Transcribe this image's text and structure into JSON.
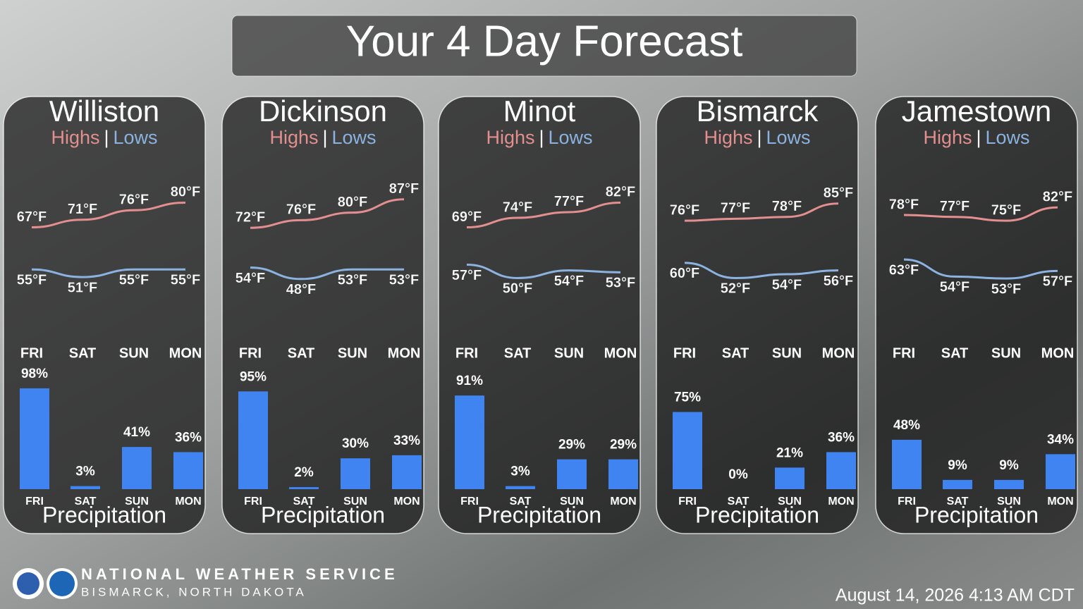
{
  "title": "Your 4 Day Forecast",
  "legend_separator": "|",
  "chart_data": [
    {
      "type": "line",
      "title": "Williston",
      "categories": [
        "FRI",
        "SAT",
        "SUN",
        "MON"
      ],
      "series": [
        {
          "name": "Highs",
          "color": "#e38f8f",
          "values": [
            67,
            71,
            76,
            80
          ],
          "value_labels": [
            "67°F",
            "71°F",
            "76°F",
            "80°F"
          ]
        },
        {
          "name": "Lows",
          "color": "#8cb2e0",
          "values": [
            55,
            51,
            55,
            55
          ],
          "value_labels": [
            "55°F",
            "51°F",
            "55°F",
            "55°F"
          ]
        }
      ],
      "precipitation": {
        "type": "bar",
        "title": "Precipitation",
        "categories": [
          "FRI",
          "SAT",
          "SUN",
          "MON"
        ],
        "color": "#3f84f0",
        "values": [
          98,
          3,
          41,
          36
        ],
        "value_labels": [
          "98%",
          "3%",
          "41%",
          "36%"
        ]
      }
    },
    {
      "type": "line",
      "title": "Dickinson",
      "categories": [
        "FRI",
        "SAT",
        "SUN",
        "MON"
      ],
      "series": [
        {
          "name": "Highs",
          "color": "#e38f8f",
          "values": [
            72,
            76,
            80,
            87
          ],
          "value_labels": [
            "72°F",
            "76°F",
            "80°F",
            "87°F"
          ]
        },
        {
          "name": "Lows",
          "color": "#8cb2e0",
          "values": [
            54,
            48,
            53,
            53
          ],
          "value_labels": [
            "54°F",
            "48°F",
            "53°F",
            "53°F"
          ]
        }
      ],
      "precipitation": {
        "type": "bar",
        "title": "Precipitation",
        "categories": [
          "FRI",
          "SAT",
          "SUN",
          "MON"
        ],
        "color": "#3f84f0",
        "values": [
          95,
          2,
          30,
          33
        ],
        "value_labels": [
          "95%",
          "2%",
          "30%",
          "33%"
        ]
      }
    },
    {
      "type": "line",
      "title": "Minot",
      "categories": [
        "FRI",
        "SAT",
        "SUN",
        "MON"
      ],
      "series": [
        {
          "name": "Highs",
          "color": "#e38f8f",
          "values": [
            69,
            74,
            77,
            82
          ],
          "value_labels": [
            "69°F",
            "74°F",
            "77°F",
            "82°F"
          ]
        },
        {
          "name": "Lows",
          "color": "#8cb2e0",
          "values": [
            57,
            50,
            54,
            53
          ],
          "value_labels": [
            "57°F",
            "50°F",
            "54°F",
            "53°F"
          ]
        }
      ],
      "precipitation": {
        "type": "bar",
        "title": "Precipitation",
        "categories": [
          "FRI",
          "SAT",
          "SUN",
          "MON"
        ],
        "color": "#3f84f0",
        "values": [
          91,
          3,
          29,
          29
        ],
        "value_labels": [
          "91%",
          "3%",
          "29%",
          "29%"
        ]
      }
    },
    {
      "type": "line",
      "title": "Bismarck",
      "categories": [
        "FRI",
        "SAT",
        "SUN",
        "MON"
      ],
      "series": [
        {
          "name": "Highs",
          "color": "#e38f8f",
          "values": [
            76,
            77,
            78,
            85
          ],
          "value_labels": [
            "76°F",
            "77°F",
            "78°F",
            "85°F"
          ]
        },
        {
          "name": "Lows",
          "color": "#8cb2e0",
          "values": [
            60,
            52,
            54,
            56
          ],
          "value_labels": [
            "60°F",
            "52°F",
            "54°F",
            "56°F"
          ]
        }
      ],
      "precipitation": {
        "type": "bar",
        "title": "Precipitation",
        "categories": [
          "FRI",
          "SAT",
          "SUN",
          "MON"
        ],
        "color": "#3f84f0",
        "values": [
          75,
          0,
          21,
          36
        ],
        "value_labels": [
          "75%",
          "0%",
          "21%",
          "36%"
        ]
      }
    },
    {
      "type": "line",
      "title": "Jamestown",
      "categories": [
        "FRI",
        "SAT",
        "SUN",
        "MON"
      ],
      "series": [
        {
          "name": "Highs",
          "color": "#e38f8f",
          "values": [
            78,
            77,
            75,
            82
          ],
          "value_labels": [
            "78°F",
            "77°F",
            "75°F",
            "82°F"
          ]
        },
        {
          "name": "Lows",
          "color": "#8cb2e0",
          "values": [
            63,
            54,
            53,
            57
          ],
          "value_labels": [
            "63°F",
            "54°F",
            "53°F",
            "57°F"
          ]
        }
      ],
      "precipitation": {
        "type": "bar",
        "title": "Precipitation",
        "categories": [
          "FRI",
          "SAT",
          "SUN",
          "MON"
        ],
        "color": "#3f84f0",
        "values": [
          48,
          9,
          9,
          34
        ],
        "value_labels": [
          "48%",
          "9%",
          "9%",
          "34%"
        ]
      }
    }
  ],
  "footer": {
    "agency": "NATIONAL WEATHER SERVICE",
    "office": "BISMARCK, NORTH DAKOTA",
    "timestamp": "August 14, 2026 4:13 AM CDT"
  }
}
